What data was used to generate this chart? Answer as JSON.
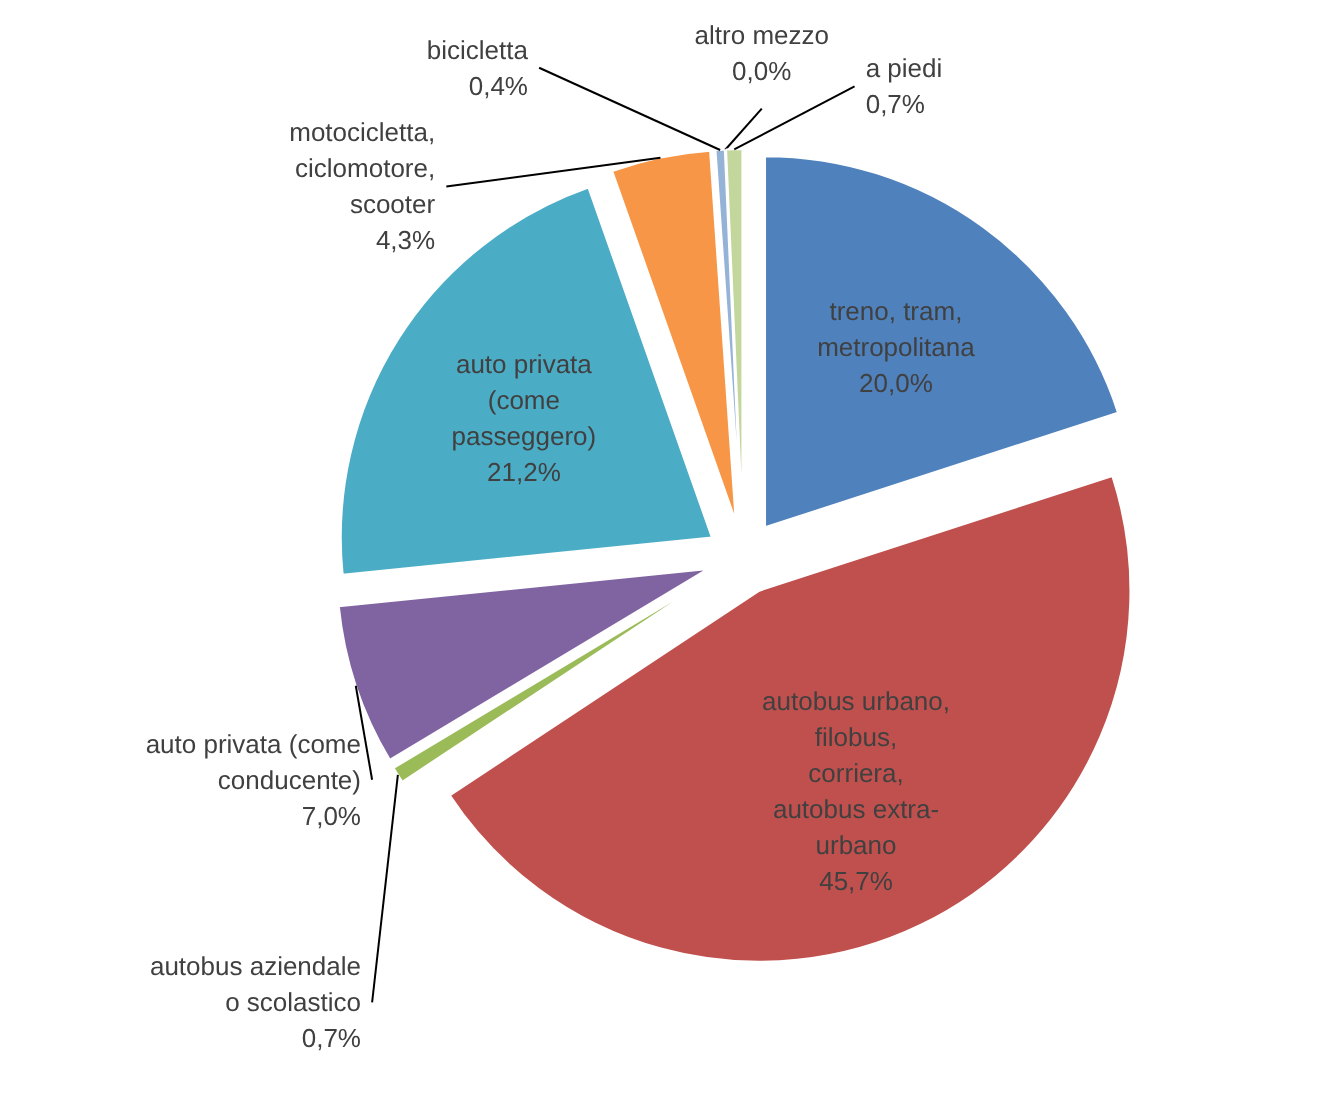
{
  "chart_data": {
    "type": "pie",
    "categories": [
      "treno, tram, metropolitana",
      "autobus urbano, filobus, corriera, autobus extra-urbano",
      "autobus aziendale o scolastico",
      "auto privata (come conducente)",
      "auto privata (come passeggero)",
      "motocicletta, ciclomotore, scooter",
      "bicicletta",
      "altro mezzo",
      "a piedi"
    ],
    "values": [
      20.0,
      45.7,
      0.7,
      7.0,
      21.2,
      4.3,
      0.4,
      0.0,
      0.7
    ],
    "value_labels": [
      "20,0%",
      "45,7%",
      "0,7%",
      "7,0%",
      "21,2%",
      "4,3%",
      "0,4%",
      "0,0%",
      "0,7%"
    ],
    "colors": [
      "#4f81bd",
      "#c0504d",
      "#9bbb59",
      "#8064a2",
      "#4bacc6",
      "#f79646",
      "#95b3d7",
      "#d99694",
      "#c3d69b"
    ]
  }
}
